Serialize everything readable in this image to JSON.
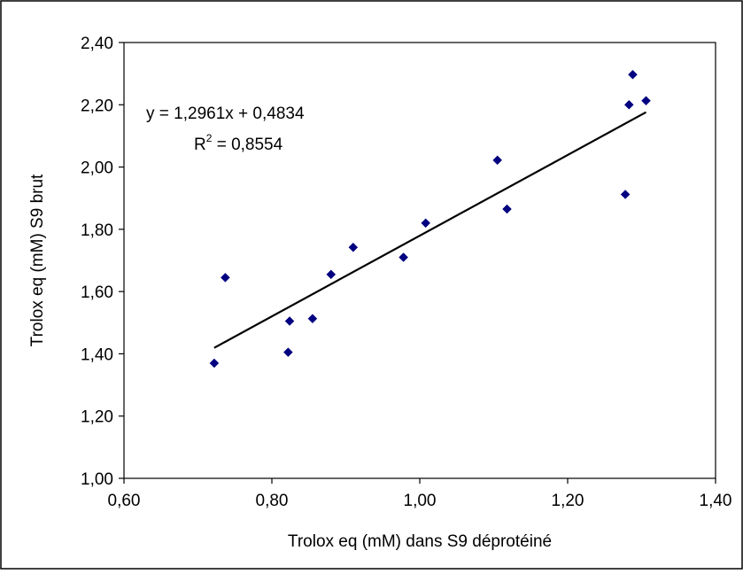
{
  "chart_data": {
    "type": "scatter",
    "xlabel": "Trolox eq (mM) dans S9 déprotéiné",
    "ylabel": "Trolox eq (mM) S9 brut",
    "xlim": [
      0.6,
      1.4
    ],
    "ylim": [
      1.0,
      2.4
    ],
    "x_ticks": [
      "0,60",
      "0,80",
      "1,00",
      "1,20",
      "1,40"
    ],
    "y_ticks": [
      "1,00",
      "1,20",
      "1,40",
      "1,60",
      "1,80",
      "2,00",
      "2,20",
      "2,40"
    ],
    "grid": false,
    "legend": "none",
    "marker_color": "#000080",
    "trendline": {
      "slope": 1.2961,
      "intercept": 0.4834,
      "x_range": [
        0.722,
        1.306
      ],
      "equation": "y = 1,2961x + 0,4834",
      "r2_prefix": "R",
      "r2_sup": "2",
      "r2_value": " = 0,8554"
    },
    "points": [
      {
        "x": 0.722,
        "y": 1.37
      },
      {
        "x": 0.737,
        "y": 1.645
      },
      {
        "x": 0.822,
        "y": 1.405
      },
      {
        "x": 0.824,
        "y": 1.505
      },
      {
        "x": 0.855,
        "y": 1.513
      },
      {
        "x": 0.88,
        "y": 1.655
      },
      {
        "x": 0.91,
        "y": 1.742
      },
      {
        "x": 0.978,
        "y": 1.71
      },
      {
        "x": 1.008,
        "y": 1.82
      },
      {
        "x": 1.105,
        "y": 2.022
      },
      {
        "x": 1.118,
        "y": 1.865
      },
      {
        "x": 1.278,
        "y": 1.912
      },
      {
        "x": 1.283,
        "y": 2.2
      },
      {
        "x": 1.288,
        "y": 2.297
      },
      {
        "x": 1.306,
        "y": 2.213
      }
    ]
  }
}
